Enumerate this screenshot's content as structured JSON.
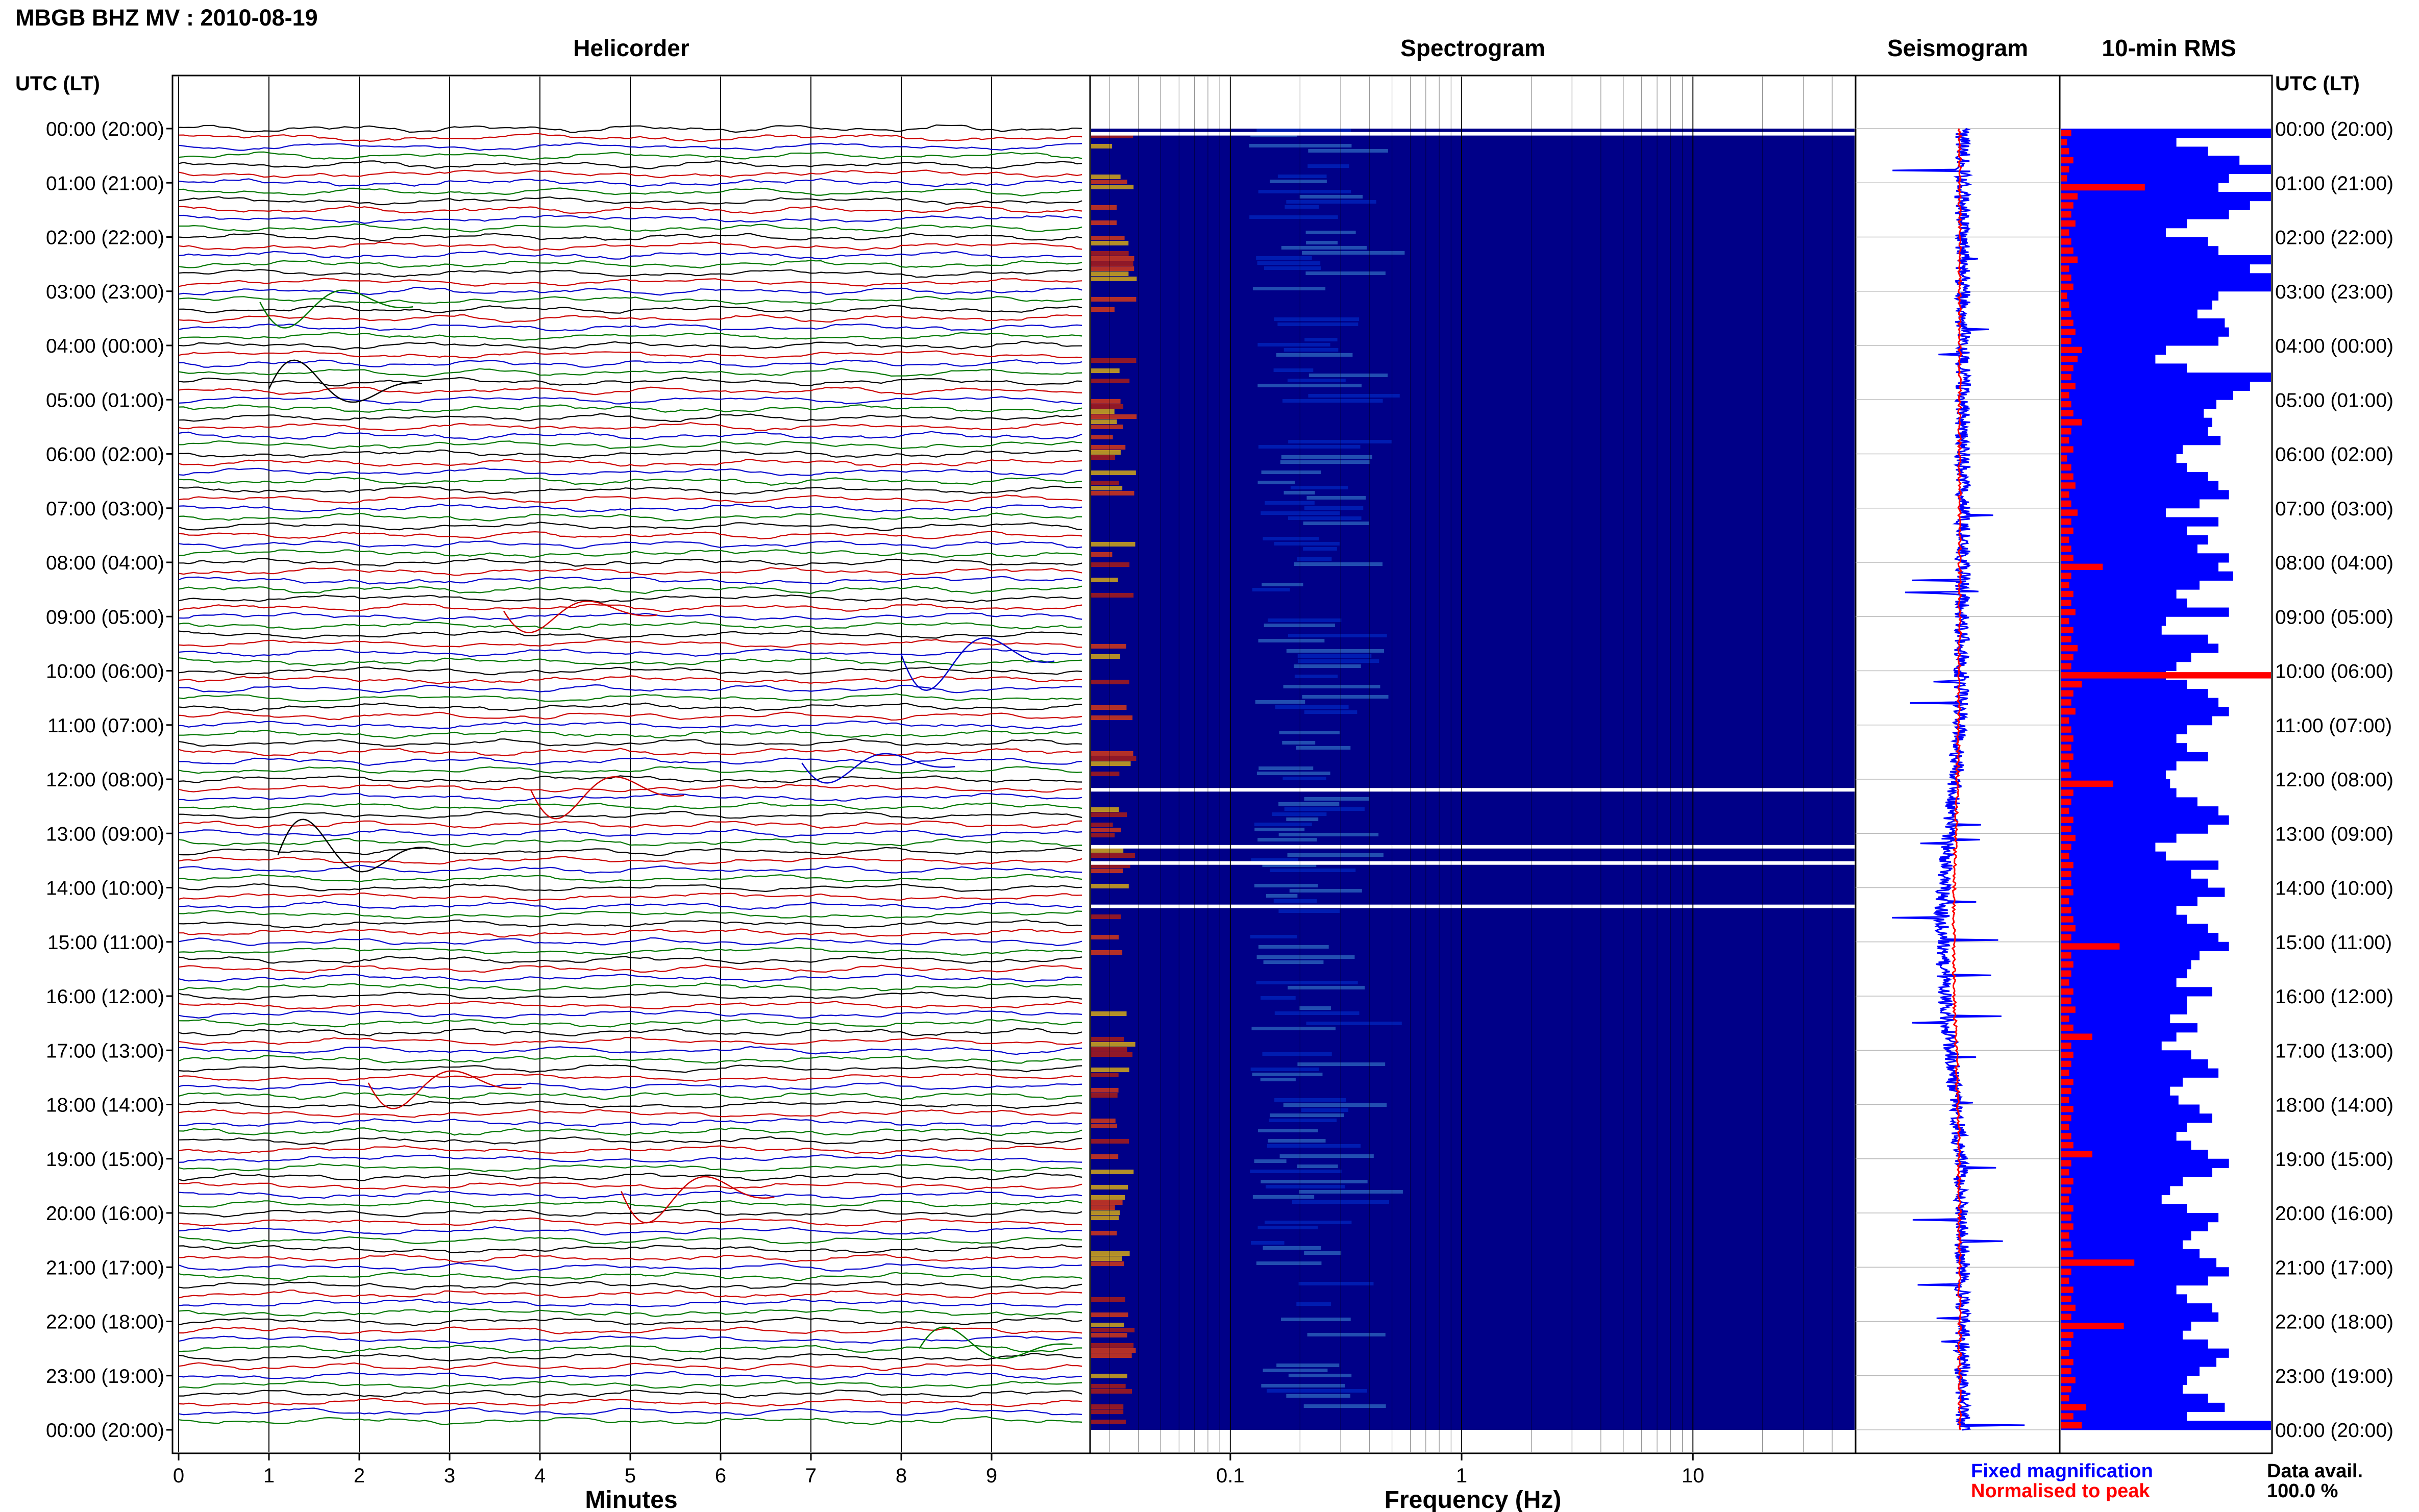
{
  "figure": {
    "title": "MBGB BHZ MV : 2010-08-19",
    "left_axis_header": "UTC (LT)",
    "right_axis_header": "UTC (LT)",
    "data_avail_label": "Data avail.",
    "data_avail_value": "100.0 %"
  },
  "colors": {
    "trace_cycle": [
      "#000000",
      "#cc0000",
      "#0000cc",
      "#007700"
    ],
    "fixed_magnification": "#0000ff",
    "normalised_to_peak": "#ff0000",
    "rms_fixed": "#0000ff",
    "rms_peak": "#ff0000",
    "spectrogram_background": "#000088"
  },
  "time_labels": [
    "00:00 (20:00)",
    "01:00 (21:00)",
    "02:00 (22:00)",
    "03:00 (23:00)",
    "04:00 (00:00)",
    "05:00 (01:00)",
    "06:00 (02:00)",
    "07:00 (03:00)",
    "08:00 (04:00)",
    "09:00 (05:00)",
    "10:00 (06:00)",
    "11:00 (07:00)",
    "12:00 (08:00)",
    "13:00 (09:00)",
    "14:00 (10:00)",
    "15:00 (11:00)",
    "16:00 (12:00)",
    "17:00 (13:00)",
    "18:00 (14:00)",
    "19:00 (15:00)",
    "20:00 (16:00)",
    "21:00 (17:00)",
    "22:00 (18:00)",
    "23:00 (19:00)",
    "00:00 (20:00)"
  ],
  "chart_data": [
    {
      "type": "line",
      "title": "Helicorder",
      "xlabel": "Minutes",
      "x_ticks": [
        "0",
        "1",
        "2",
        "3",
        "4",
        "5",
        "6",
        "7",
        "8",
        "9"
      ],
      "xlim": [
        0,
        10
      ],
      "rows": 144,
      "row_minutes": 10,
      "series_colors_cycle": [
        "black",
        "red",
        "blue",
        "green"
      ]
    },
    {
      "type": "heatmap",
      "title": "Spectrogram",
      "xlabel": "Frequency (Hz)",
      "x_scale": "log",
      "x_ticks": [
        "0.1",
        "1",
        "10"
      ],
      "xlim": [
        0.025,
        50
      ],
      "gap_rows_utc_hours": [
        0.1,
        12.2,
        13.25,
        13.55,
        14.35
      ]
    },
    {
      "type": "line",
      "title": "Seismogram",
      "series": [
        {
          "name": "Fixed magnification"
        },
        {
          "name": "Normalised to peak"
        }
      ]
    },
    {
      "type": "bar",
      "title": "10-min RMS",
      "orientation": "horizontal",
      "series": [
        {
          "name": "Fixed magnification",
          "values": [
            1.0,
            0.55,
            0.7,
            0.85,
            1.0,
            0.8,
            0.75,
            1.0,
            0.9,
            0.8,
            0.6,
            0.5,
            0.7,
            0.75,
            1.0,
            0.9,
            1.0,
            1.0,
            0.75,
            0.72,
            0.65,
            0.78,
            0.8,
            0.75,
            0.5,
            0.45,
            0.6,
            1.0,
            0.9,
            0.82,
            0.74,
            0.68,
            0.72,
            0.7,
            0.76,
            0.58,
            0.55,
            0.6,
            0.7,
            0.75,
            0.8,
            0.66,
            0.5,
            0.75,
            0.6,
            0.7,
            0.65,
            0.8,
            0.75,
            0.82,
            0.66,
            0.55,
            0.6,
            0.8,
            0.5,
            0.48,
            0.7,
            0.75,
            0.62,
            0.55,
            0.5,
            0.6,
            0.7,
            0.75,
            0.8,
            0.72,
            0.6,
            0.55,
            0.6,
            0.7,
            0.55,
            0.5,
            0.52,
            0.55,
            0.65,
            0.75,
            0.8,
            0.7,
            0.55,
            0.45,
            0.5,
            0.75,
            0.62,
            0.7,
            0.78,
            0.65,
            0.55,
            0.6,
            0.7,
            0.75,
            0.8,
            0.66,
            0.62,
            0.6,
            0.55,
            0.72,
            0.6,
            0.6,
            0.52,
            0.65,
            0.55,
            0.48,
            0.62,
            0.7,
            0.75,
            0.58,
            0.52,
            0.56,
            0.66,
            0.72,
            0.6,
            0.55,
            0.62,
            0.7,
            0.8,
            0.72,
            0.58,
            0.52,
            0.48,
            0.6,
            0.75,
            0.7,
            0.62,
            0.58,
            0.66,
            0.74,
            0.8,
            0.7,
            0.55,
            0.6,
            0.72,
            0.75,
            0.62,
            0.58,
            0.7,
            0.8,
            0.74,
            0.66,
            0.6,
            0.58,
            0.7,
            0.78,
            0.6,
            1.0
          ]
        },
        {
          "name": "Normalised to peak",
          "values": [
            0.05,
            0.03,
            0.04,
            0.06,
            0.04,
            0.03,
            0.4,
            0.08,
            0.06,
            0.05,
            0.07,
            0.04,
            0.05,
            0.06,
            0.08,
            0.04,
            0.05,
            0.06,
            0.03,
            0.04,
            0.05,
            0.06,
            0.07,
            0.05,
            0.1,
            0.08,
            0.06,
            0.05,
            0.07,
            0.04,
            0.05,
            0.06,
            0.1,
            0.05,
            0.04,
            0.06,
            0.03,
            0.05,
            0.06,
            0.07,
            0.04,
            0.05,
            0.08,
            0.05,
            0.06,
            0.04,
            0.05,
            0.06,
            0.2,
            0.05,
            0.04,
            0.06,
            0.05,
            0.07,
            0.04,
            0.06,
            0.05,
            0.08,
            0.06,
            0.05,
            1.0,
            0.1,
            0.06,
            0.05,
            0.07,
            0.04,
            0.05,
            0.06,
            0.05,
            0.06,
            0.04,
            0.05,
            0.25,
            0.06,
            0.05,
            0.04,
            0.06,
            0.05,
            0.07,
            0.05,
            0.04,
            0.06,
            0.05,
            0.05,
            0.06,
            0.04,
            0.05,
            0.06,
            0.07,
            0.05,
            0.28,
            0.05,
            0.06,
            0.05,
            0.04,
            0.06,
            0.05,
            0.07,
            0.04,
            0.06,
            0.15,
            0.05,
            0.06,
            0.05,
            0.04,
            0.06,
            0.05,
            0.04,
            0.06,
            0.05,
            0.04,
            0.05,
            0.06,
            0.15,
            0.05,
            0.04,
            0.06,
            0.05,
            0.04,
            0.06,
            0.05,
            0.06,
            0.04,
            0.05,
            0.06,
            0.35,
            0.05,
            0.04,
            0.06,
            0.05,
            0.07,
            0.05,
            0.3,
            0.06,
            0.05,
            0.04,
            0.06,
            0.05,
            0.07,
            0.05,
            0.04,
            0.12,
            0.06,
            0.1
          ]
        }
      ]
    }
  ]
}
